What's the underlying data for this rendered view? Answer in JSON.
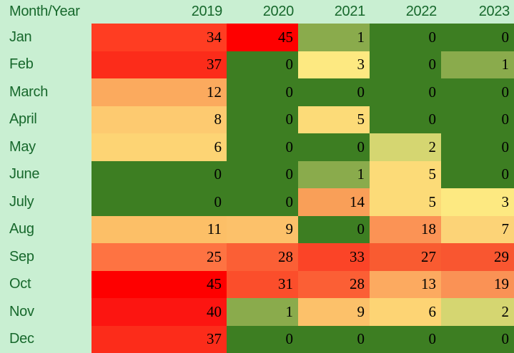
{
  "chart_data": {
    "type": "heatmap",
    "corner_label": "Month/Year",
    "columns": [
      "2019",
      "2020",
      "2021",
      "2022",
      "2023"
    ],
    "rows": [
      "Jan",
      "Feb",
      "March",
      "April",
      "May",
      "June",
      "July",
      "Aug",
      "Sep",
      "Oct",
      "Nov",
      "Dec"
    ],
    "values": [
      [
        34,
        45,
        1,
        0,
        0
      ],
      [
        37,
        0,
        3,
        0,
        1
      ],
      [
        12,
        0,
        0,
        0,
        0
      ],
      [
        8,
        0,
        5,
        0,
        0
      ],
      [
        6,
        0,
        0,
        2,
        0
      ],
      [
        0,
        0,
        1,
        5,
        0
      ],
      [
        0,
        0,
        14,
        5,
        3
      ],
      [
        11,
        9,
        0,
        18,
        7
      ],
      [
        25,
        28,
        33,
        27,
        29
      ],
      [
        45,
        31,
        28,
        13,
        19
      ],
      [
        40,
        1,
        9,
        6,
        2
      ],
      [
        37,
        0,
        0,
        0,
        0
      ]
    ],
    "value_range": [
      0,
      45
    ],
    "colormap_description": "conditional-format scale: high = red, mid = yellow/orange, low = dark green",
    "color_scale": {
      "0": "#3d7e22",
      "1": "#8aab4c",
      "2": "#d5d671",
      "3": "#fde981",
      "5": "#fcdb78",
      "6": "#fdd474",
      "7": "#fcd377",
      "8": "#fdca70",
      "9": "#fcc16a",
      "11": "#fcbf67",
      "12": "#fbaa5e",
      "13": "#fcaa60",
      "14": "#f99f58",
      "18": "#fb9355",
      "19": "#fa9255",
      "25": "#fe7342",
      "27": "#f95b31",
      "28": "#fb5f35",
      "29": "#f95630",
      "31": "#fb4e2b",
      "33": "#fb4427",
      "34": "#ff3d22",
      "37": "#fc2c1a",
      "40": "#fc1511",
      "45": "#fe0000"
    }
  },
  "colors": {
    "page_background": "#c9efd2",
    "label_text": "#17682c",
    "value_text": "#000000"
  }
}
